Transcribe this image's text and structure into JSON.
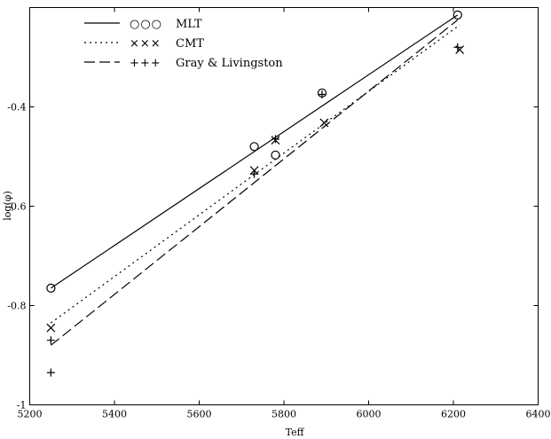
{
  "chart_data": {
    "type": "scatter",
    "xlabel": "Teff",
    "ylabel": "log(φ)",
    "xlim": [
      5200,
      6400
    ],
    "ylim": [
      -1.0,
      -0.2
    ],
    "xticks": [
      5200,
      5400,
      5600,
      5800,
      6000,
      6200,
      6400
    ],
    "yticks": [
      -1.0,
      -0.8,
      -0.6,
      -0.4
    ],
    "ytick_labels": [
      "-1",
      "-0.8",
      "-0.6",
      "-0.4"
    ],
    "grid": false,
    "legend_position": "top-left",
    "series": [
      {
        "name": "MLT",
        "marker": "circle",
        "marker_glyphs": "○○○",
        "line_style": "solid",
        "points": [
          {
            "x": 5250,
            "y": -0.765
          },
          {
            "x": 5730,
            "y": -0.48
          },
          {
            "x": 5780,
            "y": -0.497
          },
          {
            "x": 5890,
            "y": -0.372
          },
          {
            "x": 6210,
            "y": -0.215
          }
        ],
        "fit": [
          [
            5250,
            -0.765
          ],
          [
            6210,
            -0.215
          ]
        ]
      },
      {
        "name": "CMT",
        "marker": "x",
        "marker_glyphs": "×××",
        "line_style": "dotted",
        "points": [
          {
            "x": 5250,
            "y": -0.845
          },
          {
            "x": 5730,
            "y": -0.528
          },
          {
            "x": 5780,
            "y": -0.467
          },
          {
            "x": 5895,
            "y": -0.432
          },
          {
            "x": 6215,
            "y": -0.285
          }
        ],
        "fit": [
          [
            5250,
            -0.835
          ],
          [
            6215,
            -0.235
          ]
        ]
      },
      {
        "name": "Gray & Livingston",
        "marker": "plus",
        "marker_glyphs": "+++",
        "line_style": "dashed",
        "points": [
          {
            "x": 5250,
            "y": -0.87
          },
          {
            "x": 5250,
            "y": -0.935
          },
          {
            "x": 5730,
            "y": -0.535
          },
          {
            "x": 5780,
            "y": -0.465
          },
          {
            "x": 5890,
            "y": -0.375
          },
          {
            "x": 6210,
            "y": -0.28
          }
        ],
        "fit": [
          [
            5250,
            -0.88
          ],
          [
            6210,
            -0.225
          ]
        ]
      }
    ]
  }
}
